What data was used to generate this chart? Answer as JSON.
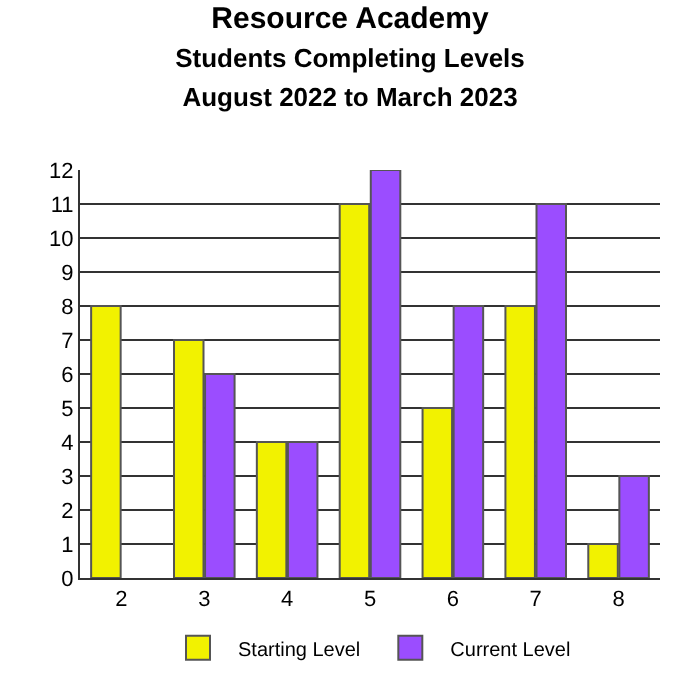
{
  "chart_data": {
    "type": "bar",
    "title": "Resource Academy",
    "subtitle": "Students Completing Levels\nAugust 2022 to March 2023",
    "categories": [
      "2",
      "3",
      "4",
      "5",
      "6",
      "7",
      "8"
    ],
    "series": [
      {
        "name": "Starting Level",
        "color": "#f2f200",
        "values": [
          8,
          7,
          4,
          11,
          5,
          8,
          1
        ]
      },
      {
        "name": "Current Level",
        "color": "#9b4dff",
        "values": [
          null,
          6,
          4,
          12,
          8,
          11,
          3
        ]
      }
    ],
    "ylim": [
      0,
      12
    ],
    "yticks": [
      0,
      1,
      2,
      3,
      4,
      5,
      6,
      7,
      8,
      9,
      10,
      11,
      12
    ],
    "grid": "y",
    "legend": "bottom"
  }
}
